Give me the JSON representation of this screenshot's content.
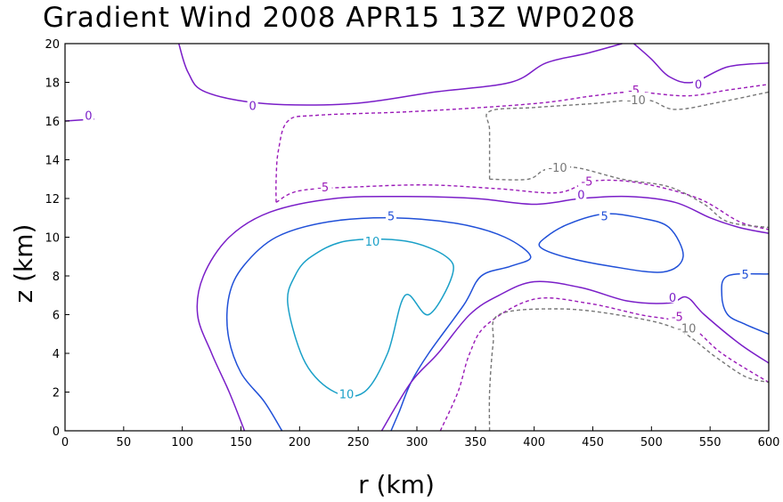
{
  "chart_data": {
    "type": "contour",
    "title": "Gradient Wind 2008 APR15 13Z  WP0208",
    "xlabel": "r (km)",
    "ylabel": "z (km)",
    "xlim": [
      0,
      600
    ],
    "ylim": [
      0,
      20
    ],
    "xticks": [
      "0",
      "50",
      "100",
      "150",
      "200",
      "250",
      "300",
      "350",
      "400",
      "450",
      "500",
      "550",
      "600"
    ],
    "yticks": [
      "0",
      "2",
      "4",
      "6",
      "8",
      "10",
      "12",
      "14",
      "16",
      "18",
      "20"
    ],
    "grid": false,
    "legend": "none",
    "colors": {
      "c10": "#1aa0c8",
      "c5": "#2050d8",
      "c0": "#7a1ec8",
      "cm5": "#9a1ab8",
      "cm10": "#777777",
      "axis": "#000000"
    },
    "contours": [
      {
        "level": "10",
        "color_key": "c10",
        "dashed": false,
        "points": [
          [
            290,
            7
          ],
          [
            275,
            4
          ],
          [
            255,
            2
          ],
          [
            230,
            2
          ],
          [
            205,
            3.5
          ],
          [
            190,
            6.5
          ],
          [
            196,
            8
          ],
          [
            210,
            9
          ],
          [
            240,
            9.8
          ],
          [
            290,
            9.8
          ],
          [
            325,
            9
          ],
          [
            330,
            8
          ],
          [
            310,
            6
          ]
        ],
        "closed": true
      },
      {
        "level": "5",
        "color_key": "c5",
        "dashed": false,
        "points": [
          [
            185,
            0
          ],
          [
            170,
            1.5
          ],
          [
            150,
            3
          ],
          [
            139,
            5
          ],
          [
            140,
            7
          ],
          [
            152,
            8.5
          ],
          [
            180,
            10
          ],
          [
            225,
            10.8
          ],
          [
            280,
            11
          ],
          [
            335,
            10.7
          ],
          [
            375,
            10
          ],
          [
            397,
            9
          ],
          [
            380,
            8.5
          ],
          [
            355,
            8
          ],
          [
            340,
            6.5
          ],
          [
            310,
            4
          ],
          [
            295,
            2.5
          ],
          [
            285,
            1
          ],
          [
            278,
            0
          ]
        ],
        "closed": false
      },
      {
        "level": "0",
        "color_key": "c0",
        "dashed": false,
        "points": [
          [
            153,
            0
          ],
          [
            140,
            2
          ],
          [
            125,
            4
          ],
          [
            113,
            6
          ],
          [
            118,
            8
          ],
          [
            140,
            10
          ],
          [
            175,
            11.3
          ],
          [
            230,
            12
          ],
          [
            290,
            12.1
          ],
          [
            350,
            12
          ],
          [
            400,
            11.7
          ],
          [
            440,
            12
          ],
          [
            480,
            12.1
          ],
          [
            520,
            11.8
          ],
          [
            550,
            11
          ],
          [
            575,
            10.5
          ],
          [
            600,
            10.2
          ]
        ],
        "closed": false
      },
      {
        "level": "0",
        "color_key": "c0",
        "dashed": false,
        "points": [
          [
            270,
            0
          ],
          [
            295,
            2.5
          ],
          [
            318,
            4
          ],
          [
            345,
            6
          ],
          [
            370,
            7
          ],
          [
            400,
            7.7
          ],
          [
            440,
            7.4
          ],
          [
            480,
            6.7
          ],
          [
            515,
            6.6
          ],
          [
            530,
            6.9
          ],
          [
            545,
            6
          ],
          [
            575,
            4.5
          ],
          [
            600,
            3.5
          ]
        ],
        "closed": false
      },
      {
        "level": "0",
        "color_key": "c0",
        "dashed": false,
        "points": [
          [
            97,
            20
          ],
          [
            105,
            18.5
          ],
          [
            120,
            17.5
          ],
          [
            170,
            16.9
          ],
          [
            245,
            16.9
          ],
          [
            315,
            17.5
          ],
          [
            380,
            18
          ],
          [
            410,
            19
          ],
          [
            445,
            19.5
          ],
          [
            475,
            20
          ]
        ],
        "closed": false
      },
      {
        "level": "0",
        "color_key": "c0",
        "dashed": false,
        "points": [
          [
            485,
            20
          ],
          [
            500,
            19.2
          ],
          [
            515,
            18.3
          ],
          [
            535,
            18
          ],
          [
            565,
            18.8
          ],
          [
            600,
            19
          ]
        ],
        "closed": false
      },
      {
        "level": "0",
        "color_key": "c0",
        "dashed": false,
        "points": [
          [
            0,
            16
          ],
          [
            25,
            16.1
          ]
        ],
        "closed": false
      },
      {
        "level": "5",
        "color_key": "c5",
        "dashed": false,
        "points": [
          [
            410,
            10
          ],
          [
            430,
            10.7
          ],
          [
            460,
            11.2
          ],
          [
            490,
            11
          ],
          [
            515,
            10.5
          ],
          [
            527,
            9
          ],
          [
            510,
            8.2
          ],
          [
            465,
            8.5
          ],
          [
            425,
            9
          ],
          [
            405,
            9.5
          ]
        ],
        "closed": true
      },
      {
        "level": "5",
        "color_key": "c5",
        "dashed": false,
        "points": [
          [
            600,
            8.1
          ],
          [
            565,
            8
          ],
          [
            560,
            7
          ],
          [
            565,
            6
          ],
          [
            580,
            5.5
          ],
          [
            600,
            5
          ]
        ],
        "closed": false
      },
      {
        "level": "-5",
        "color_key": "cm5",
        "dashed": true,
        "points": [
          [
            320,
            0
          ],
          [
            335,
            2
          ],
          [
            345,
            4
          ],
          [
            360,
            5.5
          ],
          [
            400,
            6.8
          ],
          [
            445,
            6.6
          ],
          [
            490,
            6
          ],
          [
            530,
            5.5
          ],
          [
            560,
            4
          ],
          [
            600,
            2.5
          ]
        ],
        "closed": false
      },
      {
        "level": "-5",
        "color_key": "cm5",
        "dashed": true,
        "points": [
          [
            180,
            11.8
          ],
          [
            180,
            13
          ],
          [
            182,
            14.5
          ],
          [
            190,
            16
          ],
          [
            215,
            16.3
          ],
          [
            300,
            16.5
          ],
          [
            400,
            16.9
          ],
          [
            450,
            17.3
          ],
          [
            485,
            17.5
          ],
          [
            530,
            17.3
          ],
          [
            565,
            17.6
          ],
          [
            600,
            17.9
          ]
        ],
        "closed": false
      },
      {
        "level": "-5",
        "color_key": "cm5",
        "dashed": true,
        "points": [
          [
            180,
            11.8
          ],
          [
            200,
            12.4
          ],
          [
            250,
            12.6
          ],
          [
            310,
            12.7
          ],
          [
            370,
            12.5
          ],
          [
            420,
            12.3
          ],
          [
            450,
            12.9
          ],
          [
            490,
            12.8
          ],
          [
            540,
            12
          ],
          [
            575,
            10.8
          ],
          [
            600,
            10.4
          ]
        ],
        "closed": false
      },
      {
        "level": "-10",
        "color_key": "cm10",
        "dashed": true,
        "points": [
          [
            362,
            0
          ],
          [
            362,
            2
          ],
          [
            365,
            4.5
          ],
          [
            370,
            6
          ],
          [
            420,
            6.3
          ],
          [
            470,
            6
          ],
          [
            520,
            5.3
          ],
          [
            555,
            3.8
          ],
          [
            580,
            2.8
          ],
          [
            600,
            2.5
          ]
        ],
        "closed": false
      },
      {
        "level": "-10",
        "color_key": "cm10",
        "dashed": true,
        "points": [
          [
            362,
            13
          ],
          [
            362,
            15.5
          ],
          [
            362,
            16.5
          ],
          [
            400,
            16.7
          ],
          [
            450,
            16.9
          ],
          [
            495,
            17.1
          ],
          [
            520,
            16.6
          ],
          [
            560,
            17
          ],
          [
            600,
            17.5
          ]
        ],
        "closed": false
      },
      {
        "level": "-10",
        "color_key": "cm10",
        "dashed": true,
        "points": [
          [
            362,
            13
          ],
          [
            395,
            13
          ],
          [
            410,
            13.5
          ],
          [
            435,
            13.6
          ],
          [
            475,
            13
          ],
          [
            515,
            12.6
          ],
          [
            545,
            11.7
          ],
          [
            565,
            10.8
          ],
          [
            600,
            10.5
          ]
        ],
        "closed": false
      }
    ],
    "labels": [
      {
        "text": "10",
        "x": 262,
        "y": 9.8,
        "color_key": "c10"
      },
      {
        "text": "10",
        "x": 240,
        "y": 1.9,
        "color_key": "c10"
      },
      {
        "text": "5",
        "x": 278,
        "y": 11.1,
        "color_key": "c5"
      },
      {
        "text": "5",
        "x": 460,
        "y": 11.1,
        "color_key": "c5"
      },
      {
        "text": "5",
        "x": 580,
        "y": 8.1,
        "color_key": "c5"
      },
      {
        "text": "0",
        "x": 160,
        "y": 16.8,
        "color_key": "c0"
      },
      {
        "text": "0",
        "x": 540,
        "y": 17.9,
        "color_key": "c0"
      },
      {
        "text": "0",
        "x": 20,
        "y": 16.3,
        "color_key": "c0"
      },
      {
        "text": "0",
        "x": 440,
        "y": 12.2,
        "color_key": "c0"
      },
      {
        "text": "0",
        "x": 518,
        "y": 6.9,
        "color_key": "c0"
      },
      {
        "text": "-5",
        "x": 220,
        "y": 12.6,
        "color_key": "cm5"
      },
      {
        "text": "-5",
        "x": 445,
        "y": 12.9,
        "color_key": "cm5"
      },
      {
        "text": "-5",
        "x": 485,
        "y": 17.6,
        "color_key": "cm5"
      },
      {
        "text": "-5",
        "x": 522,
        "y": 5.9,
        "color_key": "cm5"
      },
      {
        "text": "-10",
        "x": 420,
        "y": 13.6,
        "color_key": "cm10"
      },
      {
        "text": "-10",
        "x": 487,
        "y": 17.1,
        "color_key": "cm10"
      },
      {
        "text": "-10",
        "x": 530,
        "y": 5.3,
        "color_key": "cm10"
      }
    ]
  }
}
